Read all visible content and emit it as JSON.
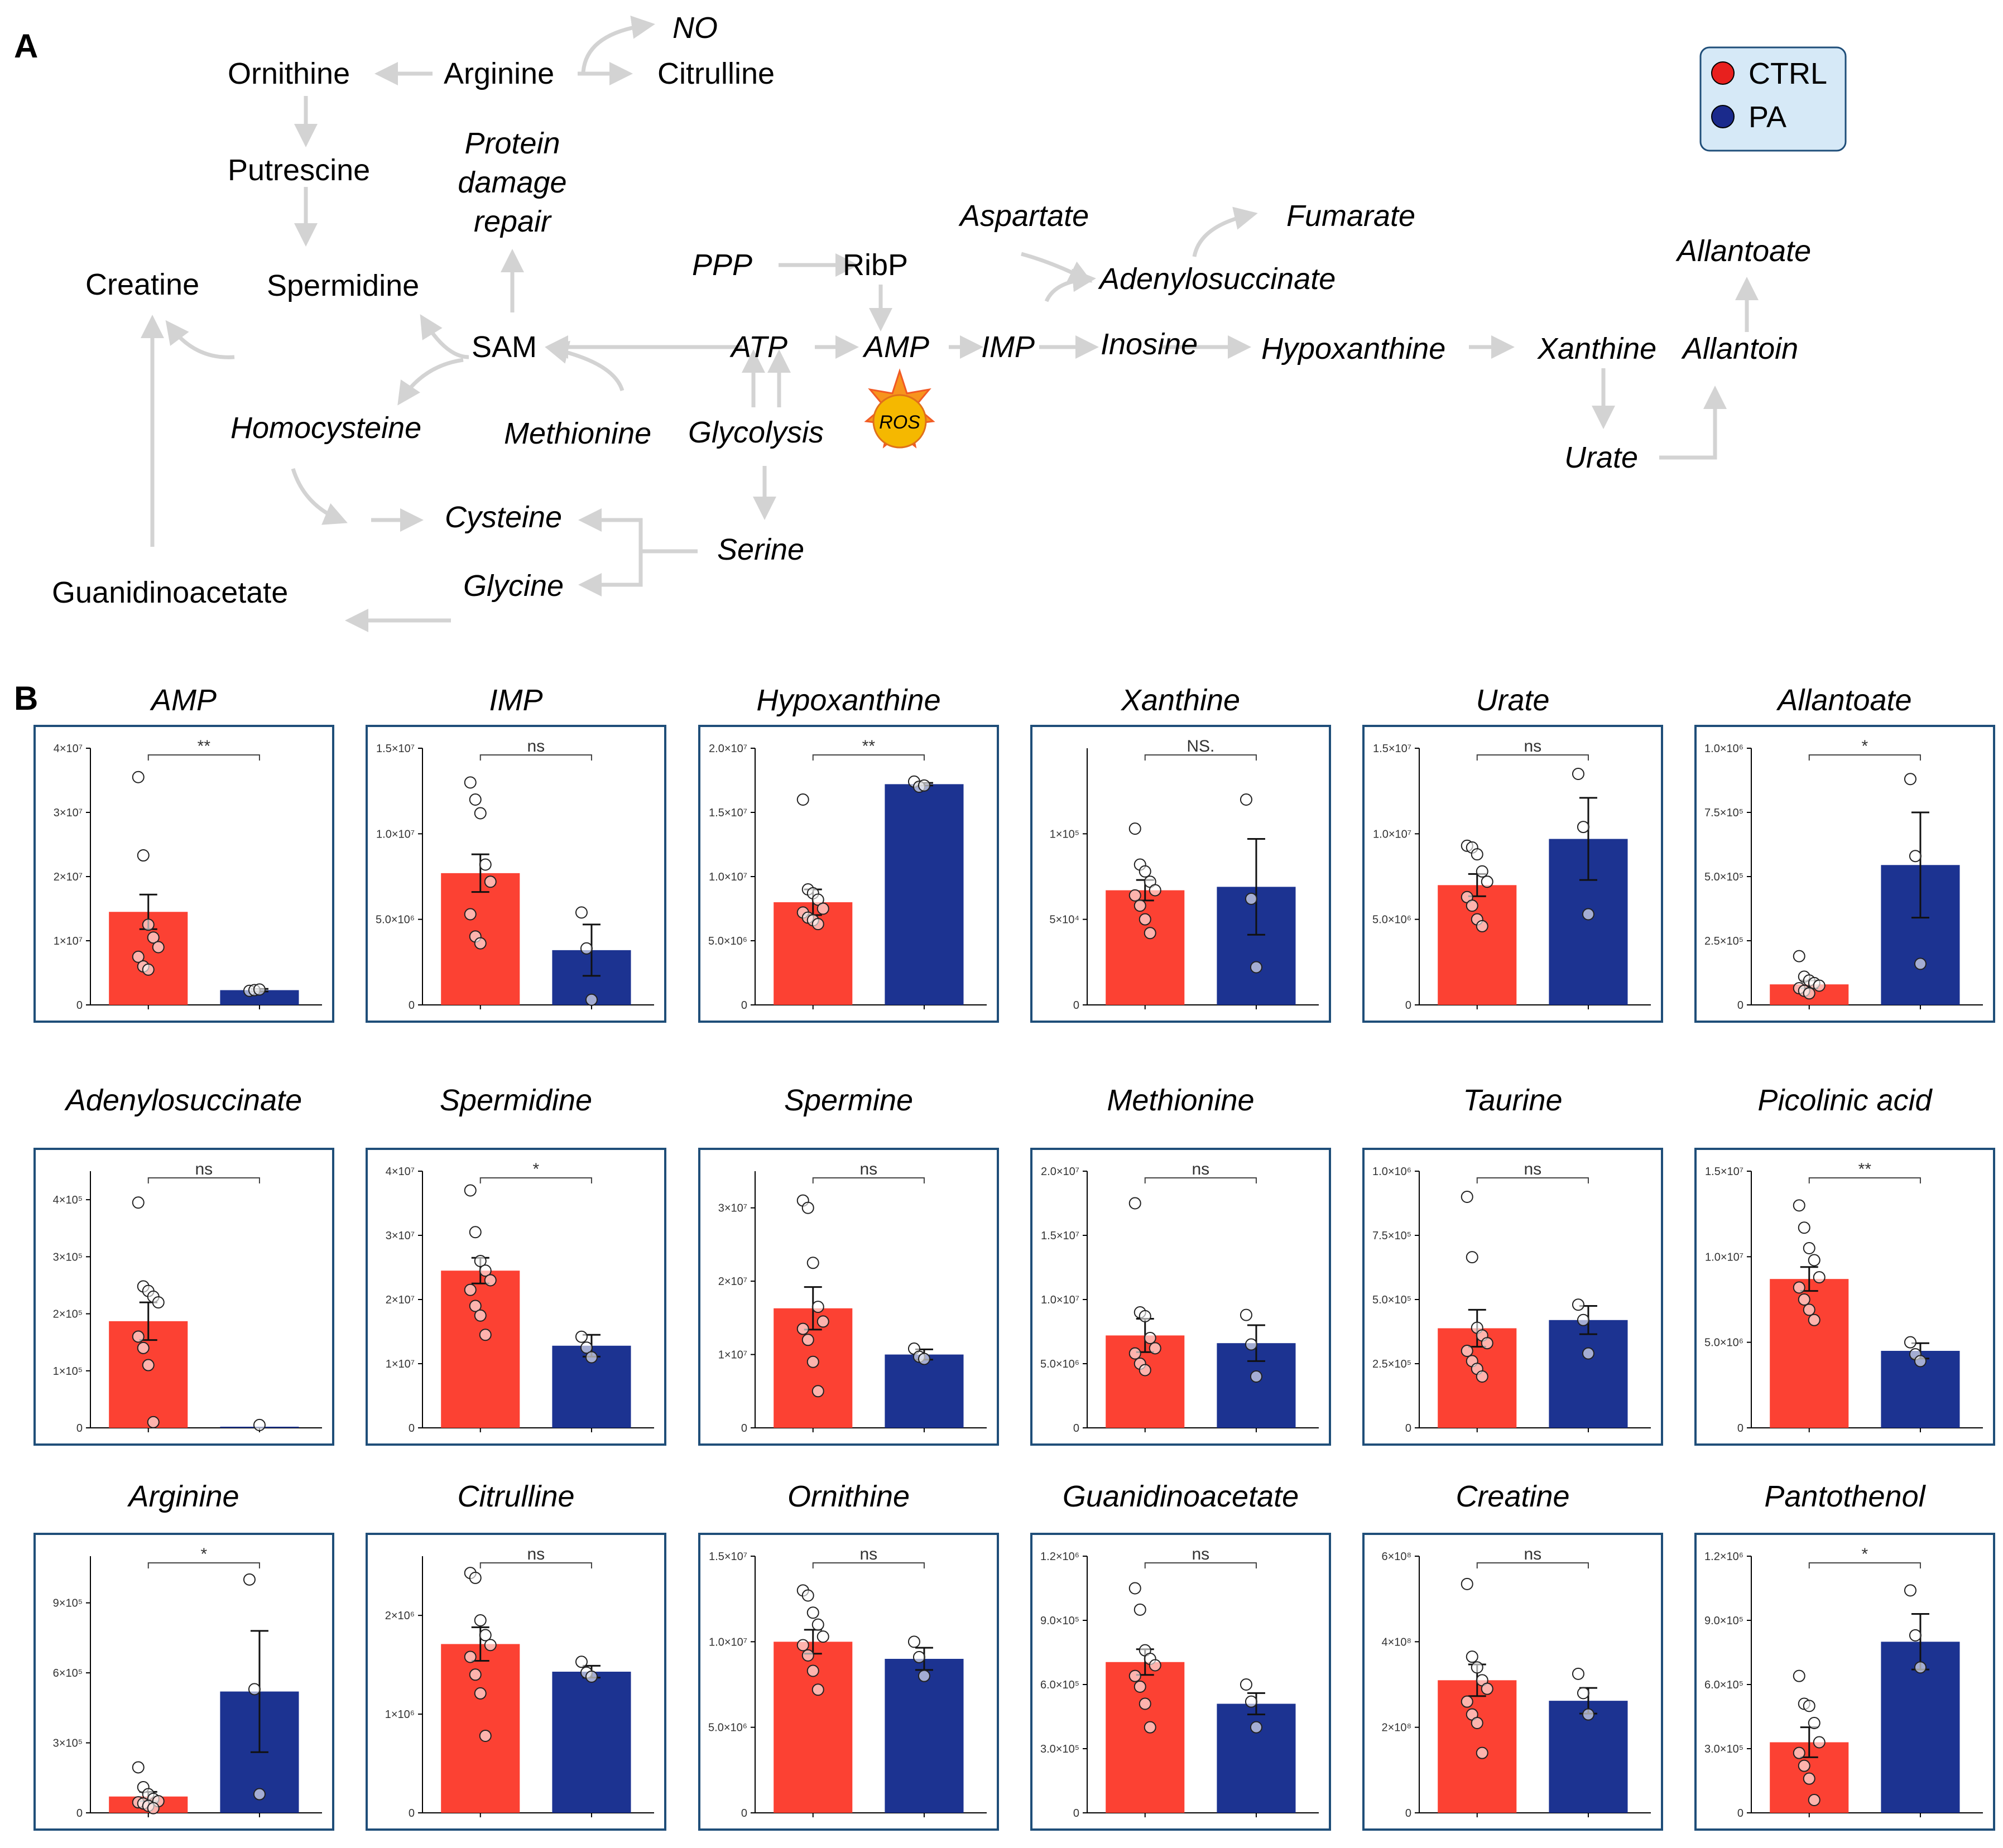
{
  "panels": {
    "a": "A",
    "b": "B"
  },
  "legend": {
    "items": [
      {
        "label": "CTRL",
        "color": "#e8201e"
      },
      {
        "label": "PA",
        "color": "#1a2a8c"
      }
    ]
  },
  "colors": {
    "ctrl_bar": "#fc4133",
    "pa_bar": "#1c3391",
    "frame": "#1f4e79",
    "arrow": "#d3d3d3"
  },
  "pathway": {
    "nodes": {
      "ornithine": "Ornithine",
      "arginine": "Arginine",
      "no": "NO",
      "citrulline": "Citrulline",
      "putrescine": "Putrescine",
      "protein_damage_repair": [
        "Protein",
        "damage",
        "repair"
      ],
      "spermidine": "Spermidine",
      "creatine": "Creatine",
      "sam": "SAM",
      "homocysteine": "Homocysteine",
      "methionine": "Methionine",
      "glycolysis": "Glycolysis",
      "ppp": "PPP",
      "ribp": "RibP",
      "atp": "ATP",
      "amp": "AMP",
      "imp": "IMP",
      "aspartate": "Aspartate",
      "fumarate": "Fumarate",
      "adenylosuccinate": "Adenylosuccinate",
      "inosine": "Inosine",
      "hypoxanthine": "Hypoxanthine",
      "xanthine": "Xanthine",
      "allantoin": "Allantoin",
      "allantoate": "Allantoate",
      "urate": "Urate",
      "ros": "ROS",
      "cysteine": "Cysteine",
      "glycine": "Glycine",
      "serine": "Serine",
      "guanidinoacetate": "Guanidinoacetate"
    }
  },
  "chart_data": [
    {
      "type": "bar",
      "title": "AMP",
      "categories": [
        "CTRL",
        "PA"
      ],
      "values": [
        14500000,
        2300000
      ],
      "errors": [
        2700000,
        200000
      ],
      "points": [
        [
          35500000,
          23300000,
          12500000,
          10500000,
          9000000,
          7500000,
          6000000,
          5500000
        ],
        [
          2200000,
          2300000,
          2400000
        ]
      ],
      "ylim": [
        0,
        40000000
      ],
      "yticks": [
        0,
        10000000,
        20000000,
        30000000,
        40000000
      ],
      "ytick_labels": [
        "0",
        "1×10⁷",
        "2×10⁷",
        "3×10⁷",
        "4×10⁷"
      ],
      "significance": "**"
    },
    {
      "type": "bar",
      "title": "IMP",
      "categories": [
        "CTRL",
        "PA"
      ],
      "values": [
        7700000,
        3200000
      ],
      "errors": [
        1100000,
        1500000
      ],
      "points": [
        [
          13000000,
          12000000,
          11200000,
          8200000,
          7200000,
          5300000,
          4000000,
          3600000
        ],
        [
          5400000,
          3300000,
          300000
        ]
      ],
      "ylim": [
        0,
        15000000
      ],
      "yticks": [
        0,
        5000000,
        10000000,
        15000000
      ],
      "ytick_labels": [
        "0",
        "5.0×10⁶",
        "1.0×10⁷",
        "1.5×10⁷"
      ],
      "significance": "ns"
    },
    {
      "type": "bar",
      "title": "Hypoxanthine",
      "categories": [
        "CTRL",
        "PA"
      ],
      "values": [
        8000000,
        17200000
      ],
      "errors": [
        1000000,
        100000
      ],
      "points": [
        [
          16000000,
          9000000,
          8700000,
          8200000,
          7500000,
          7200000,
          6800000,
          6600000,
          6300000
        ],
        [
          17400000,
          17000000,
          17100000
        ]
      ],
      "ylim": [
        0,
        20000000
      ],
      "yticks": [
        0,
        5000000,
        10000000,
        15000000,
        20000000
      ],
      "ytick_labels": [
        "0",
        "5.0×10⁶",
        "1.0×10⁷",
        "1.5×10⁷",
        "2.0×10⁷"
      ],
      "significance": "**"
    },
    {
      "type": "bar",
      "title": "Xanthine",
      "categories": [
        "CTRL",
        "PA"
      ],
      "values": [
        67000,
        69000
      ],
      "errors": [
        6000,
        28000
      ],
      "points": [
        [
          103000,
          82000,
          78000,
          72000,
          67000,
          64000,
          58000,
          50000,
          42000
        ],
        [
          120000,
          62000,
          22000
        ]
      ],
      "ylim": [
        0,
        150000
      ],
      "yticks": [
        0,
        50000,
        100000
      ],
      "ytick_labels": [
        "0",
        "5×10⁴",
        "1×10⁵"
      ],
      "significance": "NS."
    },
    {
      "type": "bar",
      "title": "Urate",
      "categories": [
        "CTRL",
        "PA"
      ],
      "values": [
        7000000,
        9700000
      ],
      "errors": [
        650000,
        2400000
      ],
      "points": [
        [
          9300000,
          9200000,
          8800000,
          7800000,
          7200000,
          6300000,
          5800000,
          5000000,
          4600000
        ],
        [
          13500000,
          10400000,
          5300000
        ]
      ],
      "ylim": [
        0,
        15000000
      ],
      "yticks": [
        0,
        5000000,
        10000000,
        15000000
      ],
      "ytick_labels": [
        "0",
        "5.0×10⁶",
        "1.0×10⁷",
        "1.5×10⁷"
      ],
      "significance": "ns"
    },
    {
      "type": "bar",
      "title": "Allantoate",
      "categories": [
        "CTRL",
        "PA"
      ],
      "values": [
        80000,
        545000
      ],
      "errors": [
        15000,
        205000
      ],
      "points": [
        [
          190000,
          110000,
          95000,
          85000,
          75000,
          65000,
          55000,
          45000
        ],
        [
          880000,
          580000,
          160000
        ]
      ],
      "ylim": [
        0,
        1000000
      ],
      "yticks": [
        0,
        250000,
        500000,
        750000,
        1000000
      ],
      "ytick_labels": [
        "0",
        "2.5×10⁵",
        "5.0×10⁵",
        "7.5×10⁵",
        "1.0×10⁶"
      ],
      "significance": "*"
    },
    {
      "type": "bar",
      "title": "Adenylosuccinate",
      "categories": [
        "CTRL",
        "PA"
      ],
      "values": [
        187000,
        2000
      ],
      "errors": [
        33000,
        0
      ],
      "points": [
        [
          395000,
          248000,
          240000,
          230000,
          220000,
          160000,
          140000,
          110000,
          10000
        ],
        [
          5000
        ]
      ],
      "ylim": [
        0,
        450000
      ],
      "yticks": [
        0,
        100000,
        200000,
        300000,
        400000
      ],
      "ytick_labels": [
        "0",
        "1×10⁵",
        "2×10⁵",
        "3×10⁵",
        "4×10⁵"
      ],
      "significance": "ns"
    },
    {
      "type": "bar",
      "title": "Spermidine",
      "categories": [
        "CTRL",
        "PA"
      ],
      "values": [
        24500000,
        12800000
      ],
      "errors": [
        2000000,
        1700000
      ],
      "points": [
        [
          37000000,
          30500000,
          26000000,
          24500000,
          23000000,
          21500000,
          19000000,
          17500000,
          14500000
        ],
        [
          14200000,
          12500000,
          11000000
        ]
      ],
      "ylim": [
        0,
        40000000
      ],
      "yticks": [
        0,
        10000000,
        20000000,
        30000000,
        40000000
      ],
      "ytick_labels": [
        "0",
        "1×10⁷",
        "2×10⁷",
        "3×10⁷",
        "4×10⁷"
      ],
      "significance": "*"
    },
    {
      "type": "bar",
      "title": "Spermine",
      "categories": [
        "CTRL",
        "PA"
      ],
      "values": [
        16300000,
        10000000
      ],
      "errors": [
        2900000,
        700000
      ],
      "points": [
        [
          31000000,
          30000000,
          22500000,
          16500000,
          14500000,
          13500000,
          12000000,
          9000000,
          5000000
        ],
        [
          10800000,
          9700000,
          9400000
        ]
      ],
      "ylim": [
        0,
        35000000
      ],
      "yticks": [
        0,
        10000000,
        20000000,
        30000000
      ],
      "ytick_labels": [
        "0",
        "1×10⁷",
        "2×10⁷",
        "3×10⁷"
      ],
      "significance": "ns"
    },
    {
      "type": "bar",
      "title": "Methionine",
      "categories": [
        "CTRL",
        "PA"
      ],
      "values": [
        7200000,
        6600000
      ],
      "errors": [
        1300000,
        1400000
      ],
      "points": [
        [
          17500000,
          9000000,
          8700000,
          7000000,
          6200000,
          5800000,
          5000000,
          4500000
        ],
        [
          8800000,
          6500000,
          4000000
        ]
      ],
      "ylim": [
        0,
        20000000
      ],
      "yticks": [
        0,
        5000000,
        10000000,
        15000000,
        20000000
      ],
      "ytick_labels": [
        "0",
        "5.0×10⁶",
        "1.0×10⁷",
        "1.5×10⁷",
        "2.0×10⁷"
      ],
      "significance": "ns"
    },
    {
      "type": "bar",
      "title": "Taurine",
      "categories": [
        "CTRL",
        "PA"
      ],
      "values": [
        388000,
        420000
      ],
      "errors": [
        72000,
        55000
      ],
      "points": [
        [
          900000,
          665000,
          390000,
          360000,
          330000,
          300000,
          260000,
          230000,
          200000
        ],
        [
          480000,
          420000,
          290000
        ]
      ],
      "ylim": [
        0,
        1000000
      ],
      "yticks": [
        0,
        250000,
        500000,
        750000,
        1000000
      ],
      "ytick_labels": [
        "0",
        "2.5×10⁵",
        "5.0×10⁵",
        "7.5×10⁵",
        "1.0×10⁶"
      ],
      "significance": "ns"
    },
    {
      "type": "bar",
      "title": "Picolinic acid",
      "categories": [
        "CTRL",
        "PA"
      ],
      "values": [
        8700000,
        4500000
      ],
      "errors": [
        700000,
        450000
      ],
      "points": [
        [
          13000000,
          11700000,
          10500000,
          9800000,
          8800000,
          8200000,
          7500000,
          6900000,
          6300000
        ],
        [
          5000000,
          4300000,
          3900000
        ]
      ],
      "ylim": [
        0,
        15000000
      ],
      "yticks": [
        0,
        5000000,
        10000000,
        15000000
      ],
      "ytick_labels": [
        "0",
        "5.0×10⁶",
        "1.0×10⁷",
        "1.5×10⁷"
      ],
      "significance": "**"
    },
    {
      "type": "bar",
      "title": "Arginine",
      "categories": [
        "CTRL",
        "PA"
      ],
      "values": [
        70000,
        520000
      ],
      "errors": [
        20000,
        260000
      ],
      "points": [
        [
          195000,
          110000,
          80000,
          60000,
          50000,
          45000,
          40000,
          30000,
          20000
        ],
        [
          1000000,
          530000,
          80000
        ]
      ],
      "ylim": [
        0,
        1100000
      ],
      "yticks": [
        0,
        300000,
        600000,
        900000
      ],
      "ytick_labels": [
        "0",
        "3×10⁵",
        "6×10⁵",
        "9×10⁵"
      ],
      "significance": "*"
    },
    {
      "type": "bar",
      "title": "Citrulline",
      "categories": [
        "CTRL",
        "PA"
      ],
      "values": [
        1710000,
        1430000
      ],
      "errors": [
        170000,
        60000
      ],
      "points": [
        [
          2430000,
          2380000,
          1950000,
          1800000,
          1700000,
          1580000,
          1400000,
          1210000,
          780000
        ],
        [
          1530000,
          1420000,
          1380000
        ]
      ],
      "ylim": [
        0,
        2600000
      ],
      "yticks": [
        0,
        1000000,
        2000000
      ],
      "ytick_labels": [
        "0",
        "1×10⁶",
        "2×10⁶"
      ],
      "significance": "ns"
    },
    {
      "type": "bar",
      "title": "Ornithine",
      "categories": [
        "CTRL",
        "PA"
      ],
      "values": [
        10000000,
        9000000
      ],
      "errors": [
        700000,
        650000
      ],
      "points": [
        [
          13000000,
          12700000,
          11700000,
          11000000,
          10300000,
          9800000,
          9200000,
          8300000,
          7200000
        ],
        [
          10000000,
          9100000,
          8000000
        ]
      ],
      "ylim": [
        0,
        15000000
      ],
      "yticks": [
        0,
        5000000,
        10000000,
        15000000
      ],
      "ytick_labels": [
        "0",
        "5.0×10⁶",
        "1.0×10⁷",
        "1.5×10⁷"
      ],
      "significance": "ns"
    },
    {
      "type": "bar",
      "title": "Guanidinoacetate",
      "categories": [
        "CTRL",
        "PA"
      ],
      "values": [
        705000,
        510000
      ],
      "errors": [
        60000,
        50000
      ],
      "points": [
        [
          1050000,
          950000,
          760000,
          720000,
          690000,
          640000,
          590000,
          510000,
          400000
        ],
        [
          600000,
          520000,
          400000
        ]
      ],
      "ylim": [
        0,
        1200000
      ],
      "yticks": [
        0,
        300000,
        600000,
        900000,
        1200000
      ],
      "ytick_labels": [
        "0",
        "3.0×10⁵",
        "6.0×10⁵",
        "9.0×10⁵",
        "1.2×10⁶"
      ],
      "significance": "ns"
    },
    {
      "type": "bar",
      "title": "Creatine",
      "categories": [
        "CTRL",
        "PA"
      ],
      "values": [
        310000000,
        262000000
      ],
      "errors": [
        37000000,
        30000000
      ],
      "points": [
        [
          535000000,
          365000000,
          340000000,
          310000000,
          290000000,
          260000000,
          230000000,
          210000000,
          140000000
        ],
        [
          325000000,
          280000000,
          230000000
        ]
      ],
      "ylim": [
        0,
        600000000
      ],
      "yticks": [
        0,
        200000000,
        400000000,
        600000000
      ],
      "ytick_labels": [
        "0",
        "2×10⁸",
        "4×10⁸",
        "6×10⁸"
      ],
      "significance": "ns"
    },
    {
      "type": "bar",
      "title": "Pantothenol",
      "categories": [
        "CTRL",
        "PA"
      ],
      "values": [
        330000,
        800000
      ],
      "errors": [
        70000,
        130000
      ],
      "points": [
        [
          640000,
          510000,
          500000,
          420000,
          330000,
          280000,
          220000,
          160000,
          60000
        ],
        [
          1040000,
          830000,
          680000
        ]
      ],
      "ylim": [
        0,
        1200000
      ],
      "yticks": [
        0,
        300000,
        600000,
        900000,
        1200000
      ],
      "ytick_labels": [
        "0",
        "3.0×10⁵",
        "6.0×10⁵",
        "9.0×10⁵",
        "1.2×10⁶"
      ],
      "significance": "*"
    }
  ]
}
